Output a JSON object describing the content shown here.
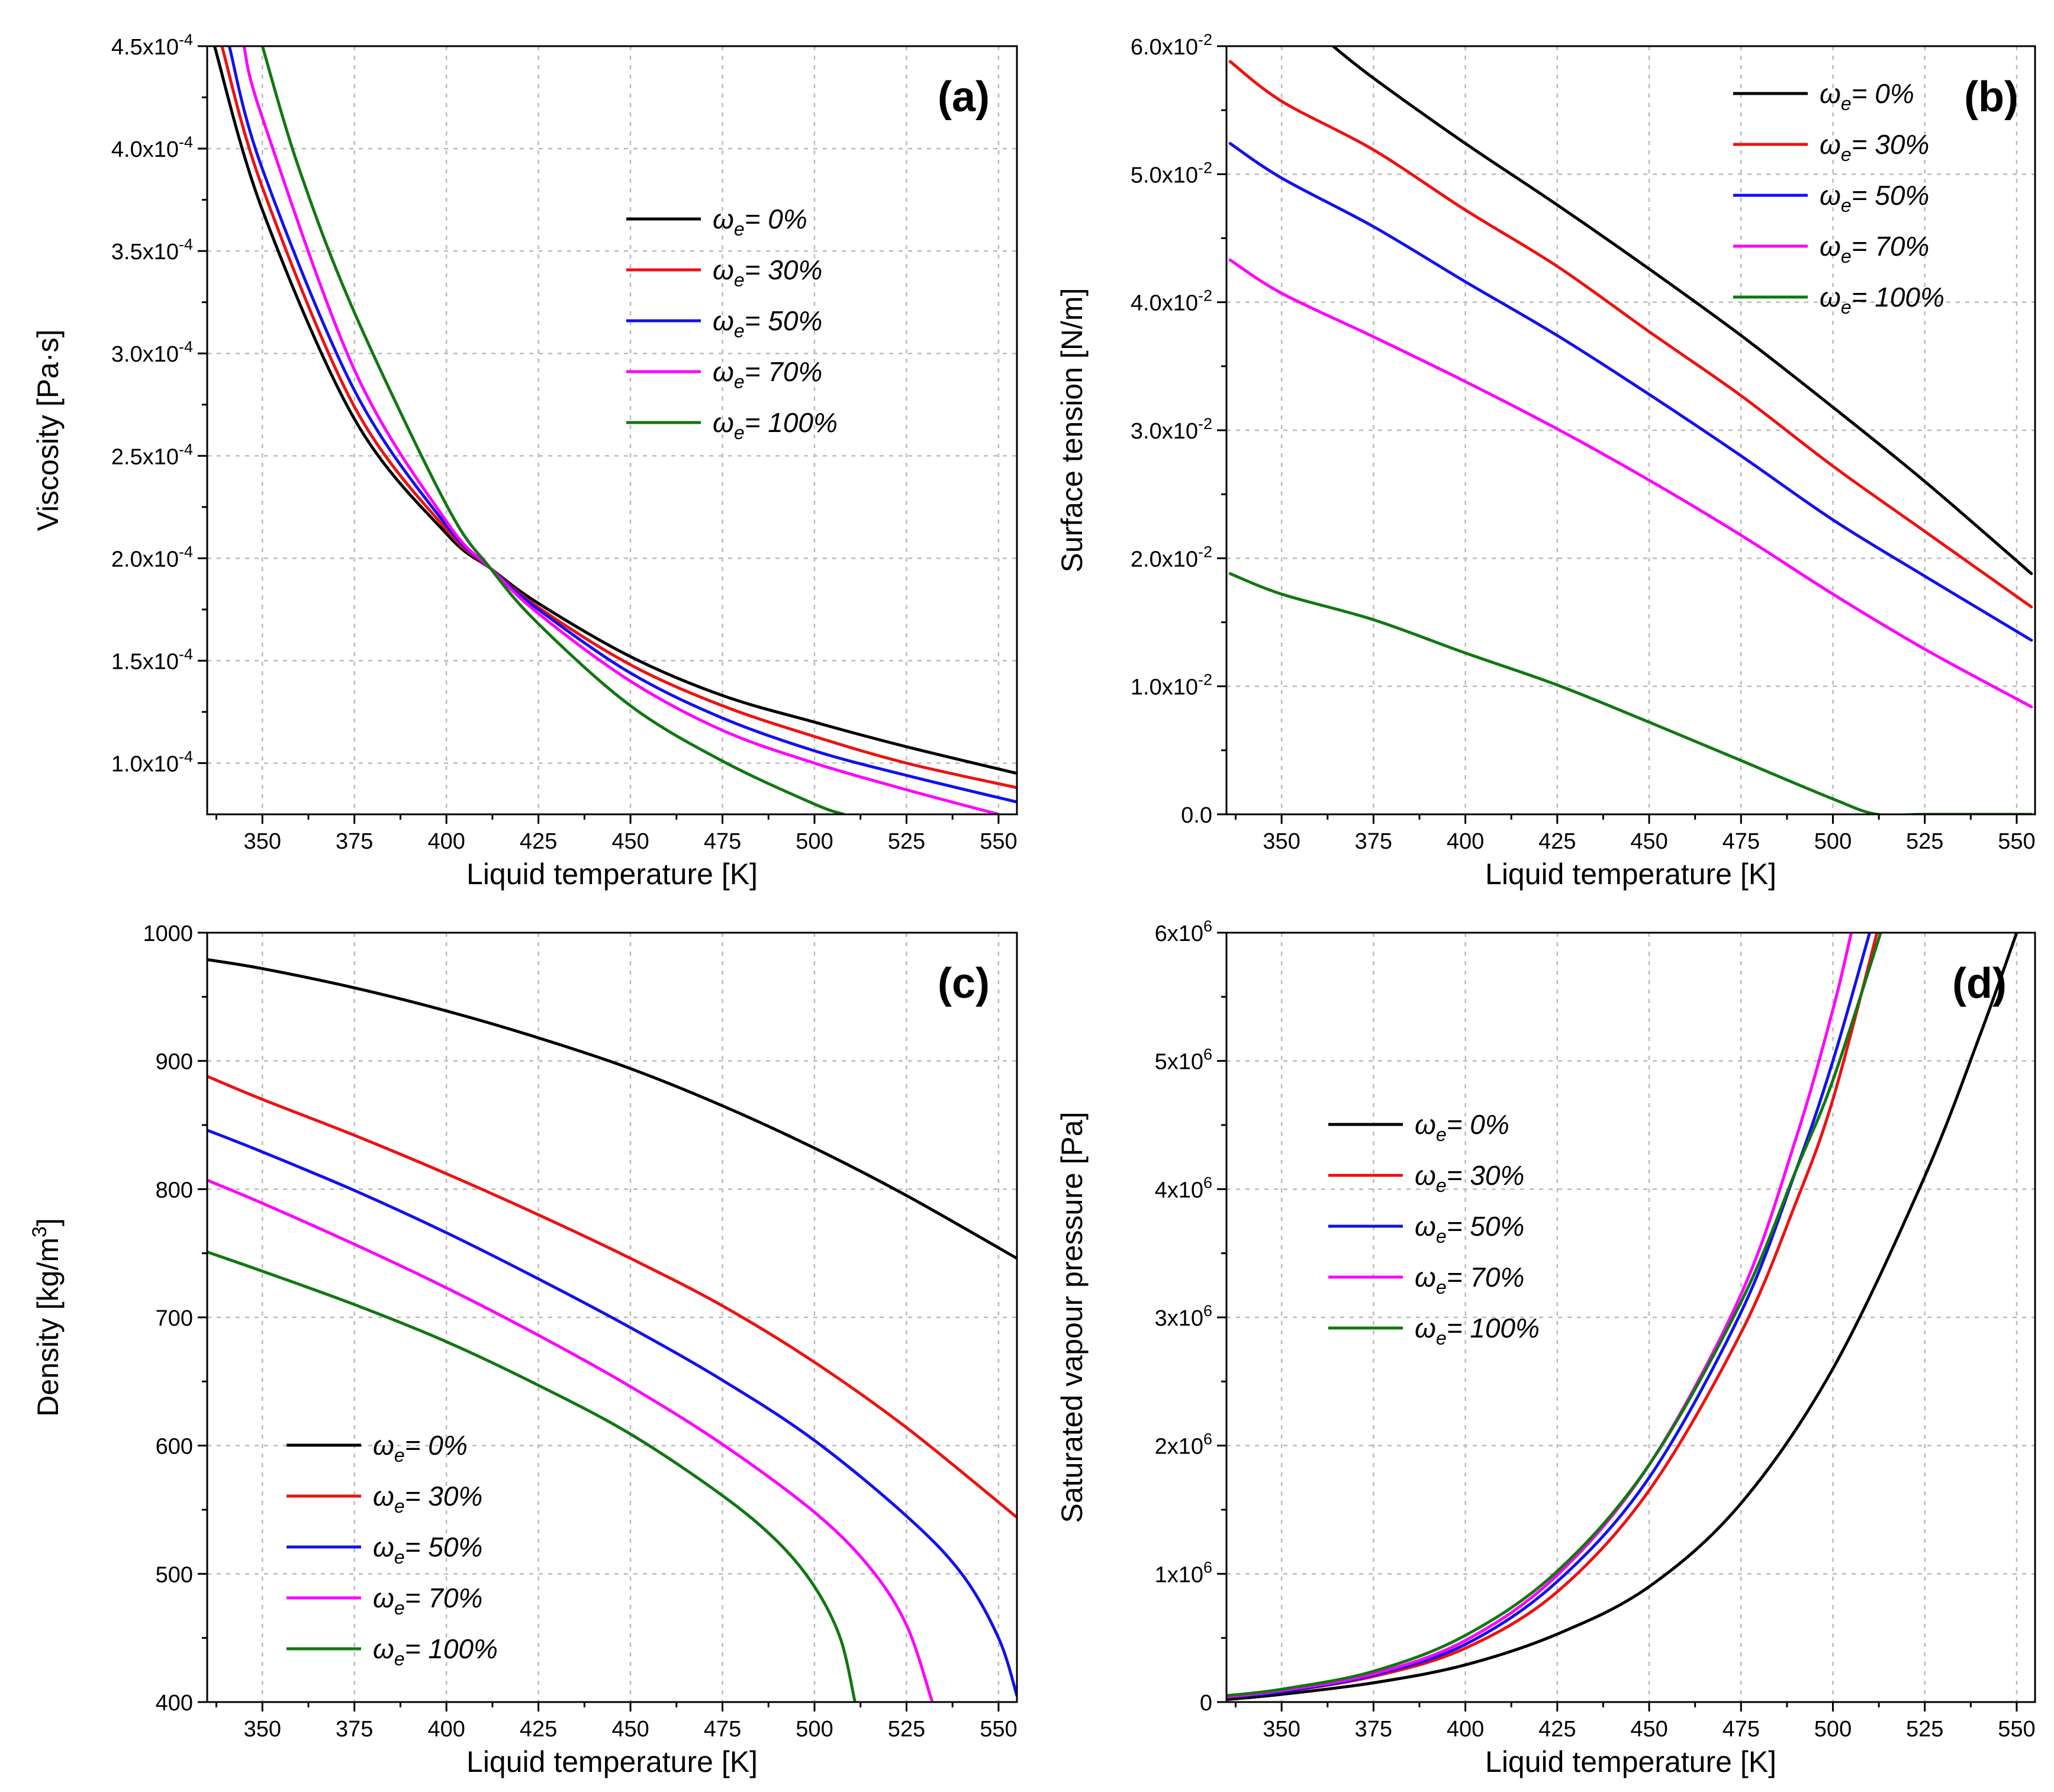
{
  "chart_data": [
    {
      "type": "line",
      "panel_label": "(a)",
      "xlabel": "Liquid temperature [K]",
      "ylabel": "Viscosity [Pa·s]",
      "xlim": [
        335,
        555
      ],
      "ylim": [
        7.5e-05,
        0.00045
      ],
      "grid": true,
      "legend_position": "upper-middle",
      "x_ticks": [
        350,
        375,
        400,
        425,
        450,
        475,
        500,
        525,
        550
      ],
      "x_tick_labels": [
        "350",
        "375",
        "400",
        "425",
        "450",
        "475",
        "500",
        "525",
        "550"
      ],
      "y_ticks": [
        0.0001,
        0.00015,
        0.0002,
        0.00025,
        0.0003,
        0.00035,
        0.0004,
        0.00045
      ],
      "y_tick_labels": [
        {
          "mantissa": "1.0x10",
          "exp": "-4"
        },
        {
          "mantissa": "1.5x10",
          "exp": "-4"
        },
        {
          "mantissa": "2.0x10",
          "exp": "-4"
        },
        {
          "mantissa": "2.5x10",
          "exp": "-4"
        },
        {
          "mantissa": "3.0x10",
          "exp": "-4"
        },
        {
          "mantissa": "3.5x10",
          "exp": "-4"
        },
        {
          "mantissa": "4.0x10",
          "exp": "-4"
        },
        {
          "mantissa": "4.5x10",
          "exp": "-4"
        }
      ],
      "series": [
        {
          "symbol": "ω",
          "subscript": "e",
          "value_label": "= 0%",
          "color": "#000000",
          "x": [
            337,
            350,
            375,
            400,
            412,
            425,
            450,
            475,
            500,
            525,
            555
          ],
          "y": [
            0.00045,
            0.00037,
            0.000268,
            0.000212,
            0.000195,
            0.000178,
            0.000152,
            0.000133,
            0.00012,
            0.000108,
            9.5e-05
          ]
        },
        {
          "symbol": "ω",
          "subscript": "e",
          "value_label": "= 30%",
          "color": "#ee1111",
          "x": [
            339,
            350,
            375,
            400,
            412,
            425,
            450,
            475,
            500,
            525,
            555
          ],
          "y": [
            0.00045,
            0.000381,
            0.000274,
            0.000214,
            0.000195,
            0.000176,
            0.000148,
            0.000128,
            0.000113,
            0.0001,
            8.8e-05
          ]
        },
        {
          "symbol": "ω",
          "subscript": "e",
          "value_label": "= 50%",
          "color": "#1111ee",
          "x": [
            341,
            350,
            375,
            400,
            412,
            425,
            450,
            475,
            500,
            525,
            555
          ],
          "y": [
            0.00045,
            0.00039,
            0.000282,
            0.000216,
            0.000195,
            0.000175,
            0.000144,
            0.000122,
            0.000106,
            9.4e-05,
            8.1e-05
          ]
        },
        {
          "symbol": "ω",
          "subscript": "e",
          "value_label": "= 70%",
          "color": "#ff00ff",
          "x": [
            345,
            350,
            375,
            400,
            412,
            425,
            450,
            475,
            500,
            525,
            550
          ],
          "y": [
            0.00045,
            0.000415,
            0.000292,
            0.000218,
            0.000195,
            0.000173,
            0.00014,
            0.000116,
            0.0001,
            8.7e-05,
            7.5e-05
          ]
        },
        {
          "symbol": "ω",
          "subscript": "e",
          "value_label": "= 100%",
          "color": "#117711",
          "x": [
            350,
            360,
            375,
            400,
            412,
            425,
            450,
            475,
            500,
            508
          ],
          "y": [
            0.00045,
            0.00039,
            0.00032,
            0.000226,
            0.000195,
            0.000168,
            0.000128,
            0.000101,
            8e-05,
            7.5e-05
          ]
        }
      ]
    },
    {
      "type": "line",
      "panel_label": "(b)",
      "xlabel": "Liquid temperature [K]",
      "ylabel": "Surface tension [N/m]",
      "xlim": [
        335,
        555
      ],
      "ylim": [
        0,
        0.06
      ],
      "grid": true,
      "legend_position": "upper-right",
      "x_ticks": [
        350,
        375,
        400,
        425,
        450,
        475,
        500,
        525,
        550
      ],
      "x_tick_labels": [
        "350",
        "375",
        "400",
        "425",
        "450",
        "475",
        "500",
        "525",
        "550"
      ],
      "y_ticks": [
        0,
        0.01,
        0.02,
        0.03,
        0.04,
        0.05,
        0.06
      ],
      "y_tick_labels": [
        {
          "mantissa": "0.0",
          "exp": ""
        },
        {
          "mantissa": "1.0x10",
          "exp": "-2"
        },
        {
          "mantissa": "2.0x10",
          "exp": "-2"
        },
        {
          "mantissa": "3.0x10",
          "exp": "-2"
        },
        {
          "mantissa": "4.0x10",
          "exp": "-2"
        },
        {
          "mantissa": "5.0x10",
          "exp": "-2"
        },
        {
          "mantissa": "6.0x10",
          "exp": "-2"
        }
      ],
      "series": [
        {
          "symbol": "ω",
          "subscript": "e",
          "value_label": "= 0%",
          "color": "#000000",
          "x": [
            364,
            375,
            400,
            425,
            450,
            475,
            500,
            525,
            554
          ],
          "y": [
            0.06,
            0.0575,
            0.0524,
            0.0476,
            0.0426,
            0.0374,
            0.0318,
            0.026,
            0.0188
          ]
        },
        {
          "symbol": "ω",
          "subscript": "e",
          "value_label": "= 30%",
          "color": "#ee1111",
          "x": [
            336,
            350,
            375,
            400,
            425,
            450,
            475,
            500,
            525,
            554
          ],
          "y": [
            0.0588,
            0.0557,
            0.0519,
            0.0472,
            0.0428,
            0.0377,
            0.0327,
            0.0272,
            0.0221,
            0.0162
          ]
        },
        {
          "symbol": "ω",
          "subscript": "e",
          "value_label": "= 50%",
          "color": "#1111ee",
          "x": [
            336,
            350,
            375,
            400,
            425,
            450,
            475,
            500,
            525,
            554
          ],
          "y": [
            0.0524,
            0.0497,
            0.0459,
            0.0416,
            0.0374,
            0.0328,
            0.028,
            0.023,
            0.0186,
            0.0136
          ]
        },
        {
          "symbol": "ω",
          "subscript": "e",
          "value_label": "= 70%",
          "color": "#ff00ff",
          "x": [
            336,
            350,
            375,
            400,
            425,
            450,
            475,
            500,
            525,
            554
          ],
          "y": [
            0.0433,
            0.0407,
            0.0373,
            0.0338,
            0.0301,
            0.0261,
            0.0218,
            0.0172,
            0.0129,
            0.0084
          ]
        },
        {
          "symbol": "ω",
          "subscript": "e",
          "value_label": "= 100%",
          "color": "#117711",
          "x": [
            336,
            350,
            375,
            400,
            425,
            450,
            475,
            500,
            512,
            525,
            554
          ],
          "y": [
            0.0188,
            0.0172,
            0.0152,
            0.0126,
            0.0101,
            0.0072,
            0.0042,
            0.0012,
            0.0,
            0.0,
            0.0
          ]
        }
      ]
    },
    {
      "type": "line",
      "panel_label": "(c)",
      "xlabel": "Liquid temperature [K]",
      "ylabel": "Density [kg/m",
      "ylabel_exp": "3",
      "ylabel_suffix": "]",
      "xlim": [
        335,
        555
      ],
      "ylim": [
        400,
        1000
      ],
      "grid": true,
      "legend_position": "lower-left",
      "x_ticks": [
        350,
        375,
        400,
        425,
        450,
        475,
        500,
        525,
        550
      ],
      "x_tick_labels": [
        "350",
        "375",
        "400",
        "425",
        "450",
        "475",
        "500",
        "525",
        "550"
      ],
      "y_ticks": [
        400,
        500,
        600,
        700,
        800,
        900,
        1000
      ],
      "y_tick_labels": [
        {
          "mantissa": "400",
          "exp": ""
        },
        {
          "mantissa": "500",
          "exp": ""
        },
        {
          "mantissa": "600",
          "exp": ""
        },
        {
          "mantissa": "700",
          "exp": ""
        },
        {
          "mantissa": "800",
          "exp": ""
        },
        {
          "mantissa": "900",
          "exp": ""
        },
        {
          "mantissa": "1000",
          "exp": ""
        }
      ],
      "series": [
        {
          "symbol": "ω",
          "subscript": "e",
          "value_label": "= 0%",
          "color": "#000000",
          "x": [
            335,
            350,
            375,
            400,
            425,
            450,
            475,
            500,
            525,
            555
          ],
          "y": [
            979,
            972,
            957,
            939,
            918,
            894,
            865,
            832,
            795,
            746
          ]
        },
        {
          "symbol": "ω",
          "subscript": "e",
          "value_label": "= 30%",
          "color": "#ee1111",
          "x": [
            335,
            350,
            375,
            400,
            425,
            450,
            475,
            500,
            525,
            555
          ],
          "y": [
            888,
            870,
            842,
            812,
            780,
            746,
            709,
            665,
            614,
            544
          ]
        },
        {
          "symbol": "ω",
          "subscript": "e",
          "value_label": "= 50%",
          "color": "#1111ee",
          "x": [
            335,
            350,
            375,
            400,
            425,
            450,
            475,
            500,
            525,
            540,
            550,
            555
          ],
          "y": [
            846,
            829,
            799,
            766,
            730,
            692,
            651,
            604,
            545,
            500,
            450,
            405
          ]
        },
        {
          "symbol": "ω",
          "subscript": "e",
          "value_label": "= 70%",
          "color": "#ff00ff",
          "x": [
            335,
            350,
            375,
            400,
            425,
            450,
            475,
            500,
            515,
            525,
            532
          ],
          "y": [
            807,
            789,
            757,
            723,
            686,
            646,
            601,
            548,
            505,
            460,
            400
          ]
        },
        {
          "symbol": "ω",
          "subscript": "e",
          "value_label": "= 100%",
          "color": "#117711",
          "x": [
            335,
            350,
            375,
            400,
            425,
            450,
            475,
            490,
            500,
            507,
            511
          ],
          "y": [
            751,
            736,
            710,
            681,
            647,
            609,
            561,
            525,
            490,
            450,
            400
          ]
        }
      ]
    },
    {
      "type": "line",
      "panel_label": "(d)",
      "xlabel": "Liquid temperature [K]",
      "ylabel": "Saturated vapour pressure [Pa]",
      "xlim": [
        335,
        555
      ],
      "ylim": [
        0,
        6000000
      ],
      "grid": true,
      "legend_position": "middle-left",
      "x_ticks": [
        350,
        375,
        400,
        425,
        450,
        475,
        500,
        525,
        550
      ],
      "x_tick_labels": [
        "350",
        "375",
        "400",
        "425",
        "450",
        "475",
        "500",
        "525",
        "550"
      ],
      "y_ticks": [
        0,
        1000000,
        2000000,
        3000000,
        4000000,
        5000000,
        6000000
      ],
      "y_tick_labels": [
        {
          "mantissa": "0",
          "exp": ""
        },
        {
          "mantissa": "1x10",
          "exp": "6"
        },
        {
          "mantissa": "2x10",
          "exp": "6"
        },
        {
          "mantissa": "3x10",
          "exp": "6"
        },
        {
          "mantissa": "4x10",
          "exp": "6"
        },
        {
          "mantissa": "5x10",
          "exp": "6"
        },
        {
          "mantissa": "6x10",
          "exp": "6"
        }
      ],
      "series": [
        {
          "symbol": "ω",
          "subscript": "e",
          "value_label": "= 0%",
          "color": "#000000",
          "x": [
            335,
            350,
            375,
            400,
            425,
            450,
            475,
            500,
            525,
            540,
            550
          ],
          "y": [
            20000,
            60000,
            150000,
            290000,
            530000,
            900000,
            1550000,
            2600000,
            4100000,
            5200000,
            6000000
          ]
        },
        {
          "symbol": "ω",
          "subscript": "e",
          "value_label": "= 30%",
          "color": "#ee1111",
          "x": [
            335,
            350,
            375,
            400,
            425,
            450,
            475,
            490,
            500,
            512
          ],
          "y": [
            40000,
            80000,
            200000,
            420000,
            860000,
            1650000,
            2880000,
            3900000,
            4700000,
            6000000
          ]
        },
        {
          "symbol": "ω",
          "subscript": "e",
          "value_label": "= 50%",
          "color": "#1111ee",
          "x": [
            335,
            350,
            375,
            400,
            425,
            450,
            475,
            490,
            500,
            510
          ],
          "y": [
            40000,
            80000,
            210000,
            450000,
            940000,
            1750000,
            3040000,
            4150000,
            5000000,
            6000000
          ]
        },
        {
          "symbol": "ω",
          "subscript": "e",
          "value_label": "= 70%",
          "color": "#ff00ff",
          "x": [
            335,
            350,
            375,
            400,
            425,
            450,
            475,
            490,
            500,
            505
          ],
          "y": [
            40000,
            90000,
            220000,
            480000,
            990000,
            1850000,
            3180000,
            4400000,
            5400000,
            6000000
          ]
        },
        {
          "symbol": "ω",
          "subscript": "e",
          "value_label": "= 100%",
          "color": "#117711",
          "x": [
            335,
            350,
            375,
            400,
            425,
            450,
            475,
            490,
            500,
            513
          ],
          "y": [
            50000,
            100000,
            240000,
            520000,
            1020000,
            1850000,
            3120000,
            4150000,
            4850000,
            6000000
          ]
        }
      ]
    }
  ]
}
